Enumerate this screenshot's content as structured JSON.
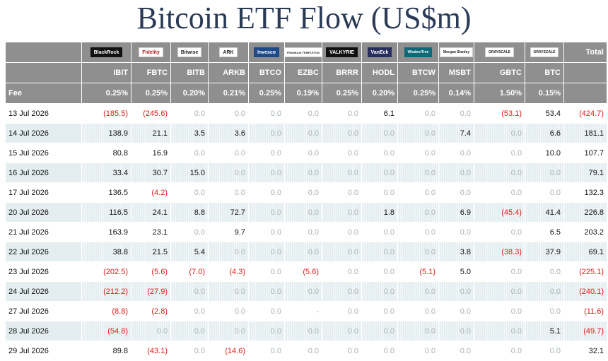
{
  "title": "Bitcoin ETF Flow (US$m)",
  "colors": {
    "header_bg": "#8f8f8f",
    "row_stripe": "#e4eef0",
    "negative": "#e21b1b",
    "zero": "#a9b3b6"
  },
  "logos": [
    "BlackRock",
    "Fidelity",
    "Bitwise",
    "ARK",
    "Invesco",
    "FRANKLIN TEMPLETON",
    "VALKYRIE",
    "VanEck",
    "WisdomTree",
    "Morgan Stanley",
    "GRAYSCALE",
    "GRAYSCALE"
  ],
  "header": {
    "total_label": "Total",
    "tickers": [
      "IBIT",
      "FBTC",
      "BITB",
      "ARKB",
      "BTCO",
      "EZBC",
      "BRRR",
      "HODL",
      "BTCW",
      "MSBT",
      "GBTC",
      "BTC"
    ],
    "fee_label": "Fee",
    "fees": [
      "0.25%",
      "0.25%",
      "0.20%",
      "0.21%",
      "0.25%",
      "0.19%",
      "0.25%",
      "0.20%",
      "0.25%",
      "0.14%",
      "1.50%",
      "0.15%"
    ]
  },
  "rows": [
    {
      "date": "13 Jul 2026",
      "values": [
        "(185.5)",
        "(245.6)",
        "0.0",
        "0.0",
        "0.0",
        "0.0",
        "0.0",
        "6.1",
        "0.0",
        "0.0",
        "(53.1)",
        "53.4"
      ],
      "total": "(424.7)"
    },
    {
      "date": "14 Jul 2026",
      "values": [
        "138.9",
        "21.1",
        "3.5",
        "3.6",
        "0.0",
        "0.0",
        "0.0",
        "0.0",
        "0.0",
        "7.4",
        "0.0",
        "6.6"
      ],
      "total": "181.1"
    },
    {
      "date": "15 Jul 2026",
      "values": [
        "80.8",
        "16.9",
        "0.0",
        "0.0",
        "0.0",
        "0.0",
        "0.0",
        "0.0",
        "0.0",
        "0.0",
        "0.0",
        "10.0"
      ],
      "total": "107.7"
    },
    {
      "date": "16 Jul 2026",
      "values": [
        "33.4",
        "30.7",
        "15.0",
        "0.0",
        "0.0",
        "0.0",
        "0.0",
        "0.0",
        "0.0",
        "0.0",
        "0.0",
        "0.0"
      ],
      "total": "79.1"
    },
    {
      "date": "17 Jul 2026",
      "values": [
        "136.5",
        "(4.2)",
        "0.0",
        "0.0",
        "0.0",
        "0.0",
        "0.0",
        "0.0",
        "0.0",
        "0.0",
        "0.0",
        "0.0"
      ],
      "total": "132.3"
    },
    {
      "date": "20 Jul 2026",
      "values": [
        "116.5",
        "24.1",
        "8.8",
        "72.7",
        "0.0",
        "0.0",
        "0.0",
        "1.8",
        "0.0",
        "6.9",
        "(45.4)",
        "41.4"
      ],
      "total": "226.8"
    },
    {
      "date": "21 Jul 2026",
      "values": [
        "163.9",
        "23.1",
        "0.0",
        "9.7",
        "0.0",
        "0.0",
        "0.0",
        "0.0",
        "0.0",
        "0.0",
        "0.0",
        "6.5"
      ],
      "total": "203.2"
    },
    {
      "date": "22 Jul 2026",
      "values": [
        "38.8",
        "21.5",
        "5.4",
        "0.0",
        "0.0",
        "0.0",
        "0.0",
        "0.0",
        "0.0",
        "3.8",
        "(38.3)",
        "37.9"
      ],
      "total": "69.1"
    },
    {
      "date": "23 Jul 2026",
      "values": [
        "(202.5)",
        "(5.6)",
        "(7.0)",
        "(4.3)",
        "0.0",
        "(5.6)",
        "0.0",
        "0.0",
        "(5.1)",
        "5.0",
        "0.0",
        "0.0"
      ],
      "total": "(225.1)"
    },
    {
      "date": "24 Jul 2026",
      "values": [
        "(212.2)",
        "(27.9)",
        "0.0",
        "0.0",
        "0.0",
        "0.0",
        "0.0",
        "0.0",
        "0.0",
        "0.0",
        "0.0",
        "0.0"
      ],
      "total": "(240.1)"
    },
    {
      "date": "27 Jul 2026",
      "values": [
        "(8.8)",
        "(2.8)",
        "0.0",
        "0.0",
        "0.0",
        "-",
        "0.0",
        "0.0",
        "0.0",
        "0.0",
        "0.0",
        "0.0"
      ],
      "total": "(11.6)"
    },
    {
      "date": "28 Jul 2026",
      "values": [
        "(54.8)",
        "0.0",
        "0.0",
        "0.0",
        "0.0",
        "0.0",
        "0.0",
        "0.0",
        "0.0",
        "0.0",
        "0.0",
        "5.1"
      ],
      "total": "(49.7)"
    },
    {
      "date": "29 Jul 2026",
      "values": [
        "89.8",
        "(43.1)",
        "0.0",
        "(14.6)",
        "0.0",
        "0.0",
        "0.0",
        "0.0",
        "0.0",
        "0.0",
        "0.0",
        "0.0"
      ],
      "total": "32.1"
    }
  ]
}
